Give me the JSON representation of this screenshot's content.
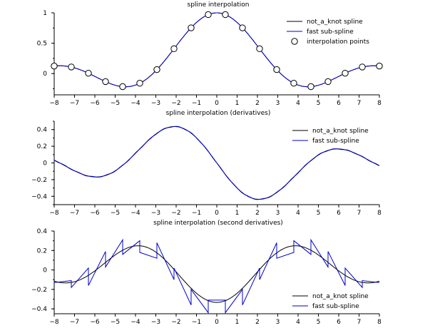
{
  "colors": {
    "not_a_knot": "#000000",
    "fast": "#0000cc",
    "marker_fill": "#ffffff",
    "axis": "#000000"
  },
  "chart_data": [
    {
      "type": "line",
      "title": "spline interpolation",
      "xlim": [
        -8,
        8
      ],
      "ylim": [
        -0.35,
        1.0
      ],
      "xticks": [
        -8,
        -7,
        -6,
        -5,
        -4,
        -3,
        -2,
        -1,
        0,
        1,
        2,
        3,
        4,
        5,
        6,
        7,
        8
      ],
      "yticks": [
        0,
        0.5,
        1
      ],
      "ytick_labels": [
        "0",
        "0.5",
        "1"
      ],
      "legend": {
        "placement": "top-right",
        "entries": [
          "not_a_knot spline",
          "fast sub-spline",
          "interpolation points"
        ]
      },
      "series": [
        {
          "name": "not_a_knot spline",
          "function": "sinc",
          "color": "#000000"
        },
        {
          "name": "fast sub-spline",
          "function": "sinc",
          "color": "#0000cc"
        }
      ],
      "points": {
        "name": "interpolation points",
        "x": [
          -8,
          -7.158,
          -6.316,
          -5.474,
          -4.632,
          -3.789,
          -2.947,
          -2.105,
          -1.263,
          -0.421,
          0.421,
          1.263,
          2.105,
          2.947,
          3.789,
          4.632,
          5.474,
          6.316,
          7.158,
          8
        ],
        "y": [
          0.124,
          0.109,
          0.006,
          -0.132,
          -0.215,
          -0.159,
          0.066,
          0.409,
          0.753,
          0.971,
          0.971,
          0.753,
          0.409,
          0.066,
          -0.159,
          -0.215,
          -0.132,
          0.006,
          0.109,
          0.124
        ]
      }
    },
    {
      "type": "line",
      "title": "spline interpolation (derivatives)",
      "xlim": [
        -8,
        8
      ],
      "ylim": [
        -0.5,
        0.5
      ],
      "xticks": [
        -8,
        -7,
        -6,
        -5,
        -4,
        -3,
        -2,
        -1,
        0,
        1,
        2,
        3,
        4,
        5,
        6,
        7,
        8
      ],
      "yticks": [
        -0.4,
        -0.2,
        0,
        0.2,
        0.4
      ],
      "ytick_labels": [
        "−0.4",
        "−0.2",
        "0",
        "0.2",
        "0.4"
      ],
      "legend": {
        "placement": "top-right",
        "entries": [
          "not_a_knot spline",
          "fast sub-spline"
        ]
      },
      "series": [
        {
          "name": "not_a_knot spline",
          "function": "sinc_derivative",
          "color": "#000000"
        },
        {
          "name": "fast sub-spline",
          "function": "sinc_derivative",
          "color": "#0000cc"
        }
      ]
    },
    {
      "type": "line",
      "title": "spline interpolation (second derivatives)",
      "xlim": [
        -8,
        8
      ],
      "ylim": [
        -0.45,
        0.4
      ],
      "xticks": [
        -8,
        -7,
        -6,
        -5,
        -4,
        -3,
        -2,
        -1,
        0,
        1,
        2,
        3,
        4,
        5,
        6,
        7,
        8
      ],
      "yticks": [
        -0.4,
        -0.2,
        0,
        0.2,
        0.4
      ],
      "ytick_labels": [
        "−0.4",
        "−0.2",
        "0",
        "0.2",
        "0.4"
      ],
      "legend": {
        "placement": "bottom-right",
        "entries": [
          "not_a_knot spline",
          "fast sub-spline"
        ]
      },
      "series": [
        {
          "name": "not_a_knot spline",
          "function": "sinc_second_derivative",
          "color": "#000000"
        },
        {
          "name": "fast sub-spline",
          "color": "#0000cc",
          "x": [
            -8,
            -7.158,
            -7.158,
            -6.316,
            -6.316,
            -5.474,
            -5.474,
            -4.632,
            -4.632,
            -3.789,
            -3.789,
            -2.947,
            -2.947,
            -2.105,
            -2.105,
            -1.263,
            -1.263,
            -0.421,
            -0.421,
            0.421,
            0.421,
            1.263,
            1.263,
            2.105,
            2.105,
            2.947,
            2.947,
            3.789,
            3.789,
            4.632,
            4.632,
            5.474,
            5.474,
            6.316,
            6.316,
            7.158,
            7.158,
            8
          ],
          "y": [
            -0.13,
            -0.11,
            -0.18,
            0.02,
            -0.16,
            0.19,
            0.03,
            0.31,
            0.16,
            0.3,
            0.18,
            0.12,
            0.28,
            -0.1,
            0.02,
            -0.36,
            -0.2,
            -0.44,
            -0.31,
            -0.31,
            -0.44,
            -0.2,
            -0.36,
            0.02,
            -0.1,
            0.28,
            0.12,
            0.18,
            0.3,
            0.16,
            0.31,
            0.03,
            0.19,
            -0.16,
            0.02,
            -0.18,
            -0.11,
            -0.13
          ]
        }
      ]
    }
  ]
}
